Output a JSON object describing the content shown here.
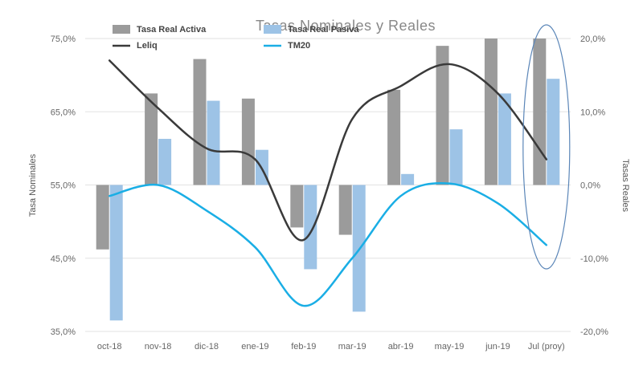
{
  "chart_data": {
    "type": "bar",
    "title": "Tasas Nominales y Reales",
    "ylabel_left": "Tasa Nominales",
    "ylabel_right": "Tasas Reales",
    "categories": [
      "oct-18",
      "nov-18",
      "dic-18",
      "ene-19",
      "feb-19",
      "mar-19",
      "abr-19",
      "may-19",
      "jun-19",
      "Jul (proy)"
    ],
    "left_axis": {
      "min": 35,
      "max": 75,
      "ticks": [
        "35,0%",
        "45,0%",
        "55,0%",
        "65,0%",
        "75,0%"
      ],
      "tick_values": [
        35,
        45,
        55,
        65,
        75
      ]
    },
    "right_axis": {
      "min": -20,
      "max": 20,
      "ticks": [
        "-20,0%",
        "-10,0%",
        "0,0%",
        "10,0%",
        "20,0%"
      ],
      "tick_values": [
        -20,
        -10,
        0,
        10,
        20
      ]
    },
    "series": [
      {
        "name": "Tasa Real Activa",
        "kind": "bar",
        "axis": "right",
        "color": "#9b9b9b",
        "values": [
          -8.8,
          12.5,
          17.2,
          11.8,
          -5.8,
          -6.8,
          13.0,
          19.0,
          20.0,
          20.0
        ]
      },
      {
        "name": "Tasa Real Pasiva",
        "kind": "bar",
        "axis": "right",
        "color": "#9dc3e6",
        "values": [
          -18.5,
          6.3,
          11.5,
          4.8,
          -11.5,
          -17.3,
          1.5,
          7.6,
          12.5,
          14.5
        ]
      },
      {
        "name": "Leliq",
        "kind": "line",
        "axis": "left",
        "color": "#3a3a3a",
        "values": [
          72.0,
          65.5,
          60.0,
          58.5,
          47.5,
          64.0,
          68.5,
          71.5,
          67.5,
          58.5
        ]
      },
      {
        "name": "TM20",
        "kind": "line",
        "axis": "right",
        "color": "#1aaee5",
        "values": [
          -1.5,
          0.0,
          -3.5,
          -8.5,
          -16.5,
          -10.0,
          -1.5,
          0.2,
          -2.5,
          -8.2
        ]
      }
    ],
    "legend": "top-left",
    "grid": true,
    "annotation": {
      "kind": "ellipse",
      "category": "Jul (proy)",
      "color": "#5b86b8"
    }
  }
}
